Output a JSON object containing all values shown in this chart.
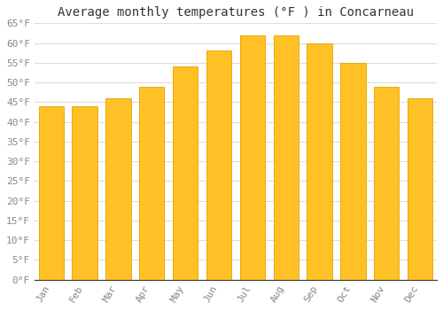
{
  "title": "Average monthly temperatures (°F ) in Concarneau",
  "months": [
    "Jan",
    "Feb",
    "Mar",
    "Apr",
    "May",
    "Jun",
    "Jul",
    "Aug",
    "Sep",
    "Oct",
    "Nov",
    "Dec"
  ],
  "values": [
    44,
    44,
    46,
    49,
    54,
    58,
    62,
    62,
    60,
    55,
    49,
    46
  ],
  "bar_color": "#FFC125",
  "bar_edge_color": "#E8A000",
  "ylim": [
    0,
    65
  ],
  "yticks": [
    0,
    5,
    10,
    15,
    20,
    25,
    30,
    35,
    40,
    45,
    50,
    55,
    60,
    65
  ],
  "background_color": "#FFFFFF",
  "grid_color": "#DDDDDD",
  "title_fontsize": 10,
  "tick_fontsize": 8,
  "font_family": "monospace",
  "bar_width": 0.75
}
